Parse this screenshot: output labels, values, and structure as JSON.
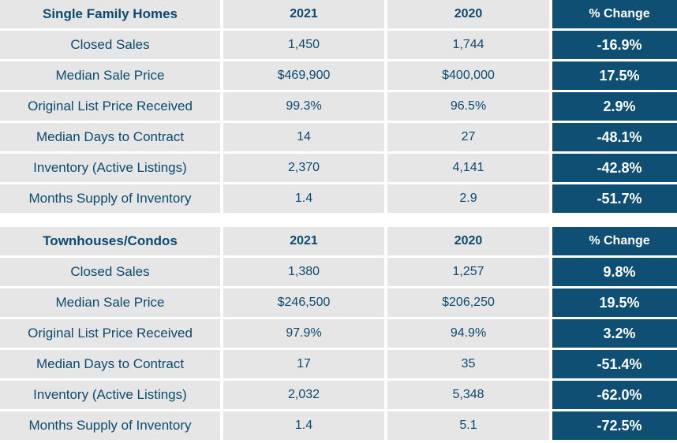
{
  "colors": {
    "accent": "#0e4f73",
    "cell_bg": "#e6e6e6",
    "text": "#0b4a6f"
  },
  "tables": [
    {
      "title": "Single Family Homes",
      "col_2021": "2021",
      "col_2020": "2020",
      "col_change": "% Change",
      "rows": [
        {
          "label": "Closed Sales",
          "v2021": "1,450",
          "v2020": "1,744",
          "change": "-16.9%"
        },
        {
          "label": "Median Sale Price",
          "v2021": "$469,900",
          "v2020": "$400,000",
          "change": "17.5%"
        },
        {
          "label": "Original List Price Received",
          "v2021": "99.3%",
          "v2020": "96.5%",
          "change": "2.9%"
        },
        {
          "label": "Median Days to Contract",
          "v2021": "14",
          "v2020": "27",
          "change": "-48.1%"
        },
        {
          "label": "Inventory (Active Listings)",
          "v2021": "2,370",
          "v2020": "4,141",
          "change": "-42.8%"
        },
        {
          "label": "Months Supply of Inventory",
          "v2021": "1.4",
          "v2020": "2.9",
          "change": "-51.7%"
        }
      ]
    },
    {
      "title": "Townhouses/Condos",
      "col_2021": "2021",
      "col_2020": "2020",
      "col_change": "% Change",
      "rows": [
        {
          "label": "Closed Sales",
          "v2021": "1,380",
          "v2020": "1,257",
          "change": "9.8%"
        },
        {
          "label": "Median Sale Price",
          "v2021": "$246,500",
          "v2020": "$206,250",
          "change": "19.5%"
        },
        {
          "label": "Original List Price Received",
          "v2021": "97.9%",
          "v2020": "94.9%",
          "change": "3.2%"
        },
        {
          "label": "Median Days to Contract",
          "v2021": "17",
          "v2020": "35",
          "change": "-51.4%"
        },
        {
          "label": "Inventory (Active Listings)",
          "v2021": "2,032",
          "v2020": "5,348",
          "change": "-62.0%"
        },
        {
          "label": "Months Supply of Inventory",
          "v2021": "1.4",
          "v2020": "5.1",
          "change": "-72.5%"
        }
      ]
    }
  ]
}
